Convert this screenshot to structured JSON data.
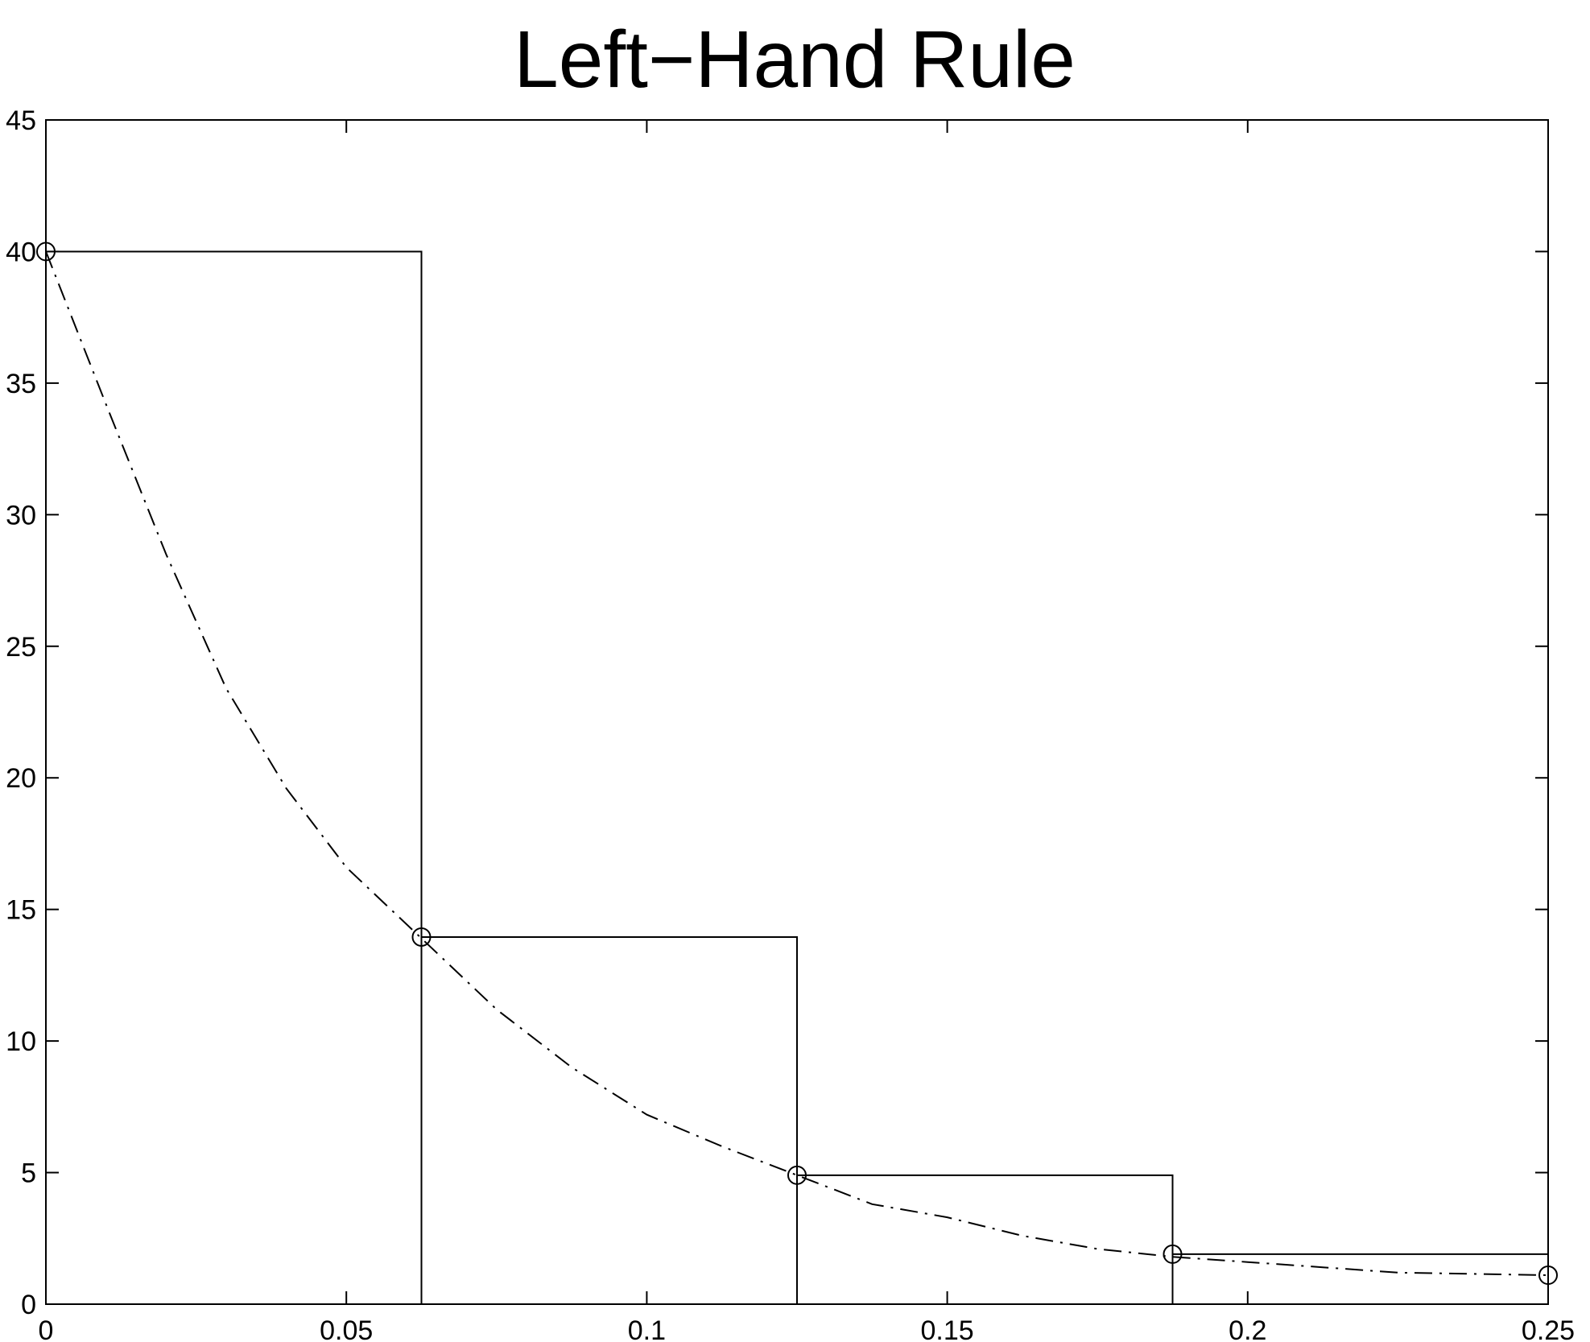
{
  "chart_data": {
    "type": "line",
    "title": "Left−Hand Rule",
    "xlabel": "",
    "ylabel": "",
    "xlim": [
      0,
      0.25
    ],
    "ylim": [
      0,
      45
    ],
    "xticks": [
      0,
      0.05,
      0.1,
      0.15,
      0.2,
      0.25
    ],
    "xtick_labels": [
      "0",
      "0.05",
      "0.1",
      "0.15",
      "0.2",
      "0.25"
    ],
    "yticks": [
      0,
      5,
      10,
      15,
      20,
      25,
      30,
      35,
      40,
      45
    ],
    "ytick_labels": [
      "0",
      "5",
      "10",
      "15",
      "20",
      "25",
      "30",
      "35",
      "40",
      "45"
    ],
    "grid": false,
    "legend": "none",
    "colors": {
      "axes": "#000000",
      "curve": "#000000",
      "rectangles": "#000000",
      "markers": "#000000"
    },
    "series": [
      {
        "style": "dash-dot",
        "x": [
          0,
          0.01,
          0.02,
          0.03,
          0.04,
          0.05,
          0.0625,
          0.075,
          0.0875,
          0.1,
          0.1125,
          0.125,
          0.1375,
          0.15,
          0.1625,
          0.175,
          0.1875,
          0.2,
          0.2125,
          0.225,
          0.2375,
          0.25
        ],
        "y": [
          40,
          34.2,
          28.5,
          23.4,
          19.6,
          16.6,
          13.9,
          11.2,
          9.0,
          7.2,
          6.0,
          4.9,
          3.8,
          3.3,
          2.6,
          2.1,
          1.8,
          1.6,
          1.4,
          1.2,
          1.15,
          1.1
        ]
      },
      {
        "style": "circle-markers",
        "x": [
          0,
          0.0625,
          0.125,
          0.1875,
          0.25
        ],
        "y": [
          40,
          13.95,
          4.9,
          1.9,
          1.1
        ]
      }
    ],
    "rectangles": [
      {
        "x0": 0,
        "x1": 0.0625,
        "height": 40
      },
      {
        "x0": 0.0625,
        "x1": 0.125,
        "height": 13.95
      },
      {
        "x0": 0.125,
        "x1": 0.1875,
        "height": 4.9
      },
      {
        "x0": 0.1875,
        "x1": 0.25,
        "height": 1.9
      }
    ]
  }
}
